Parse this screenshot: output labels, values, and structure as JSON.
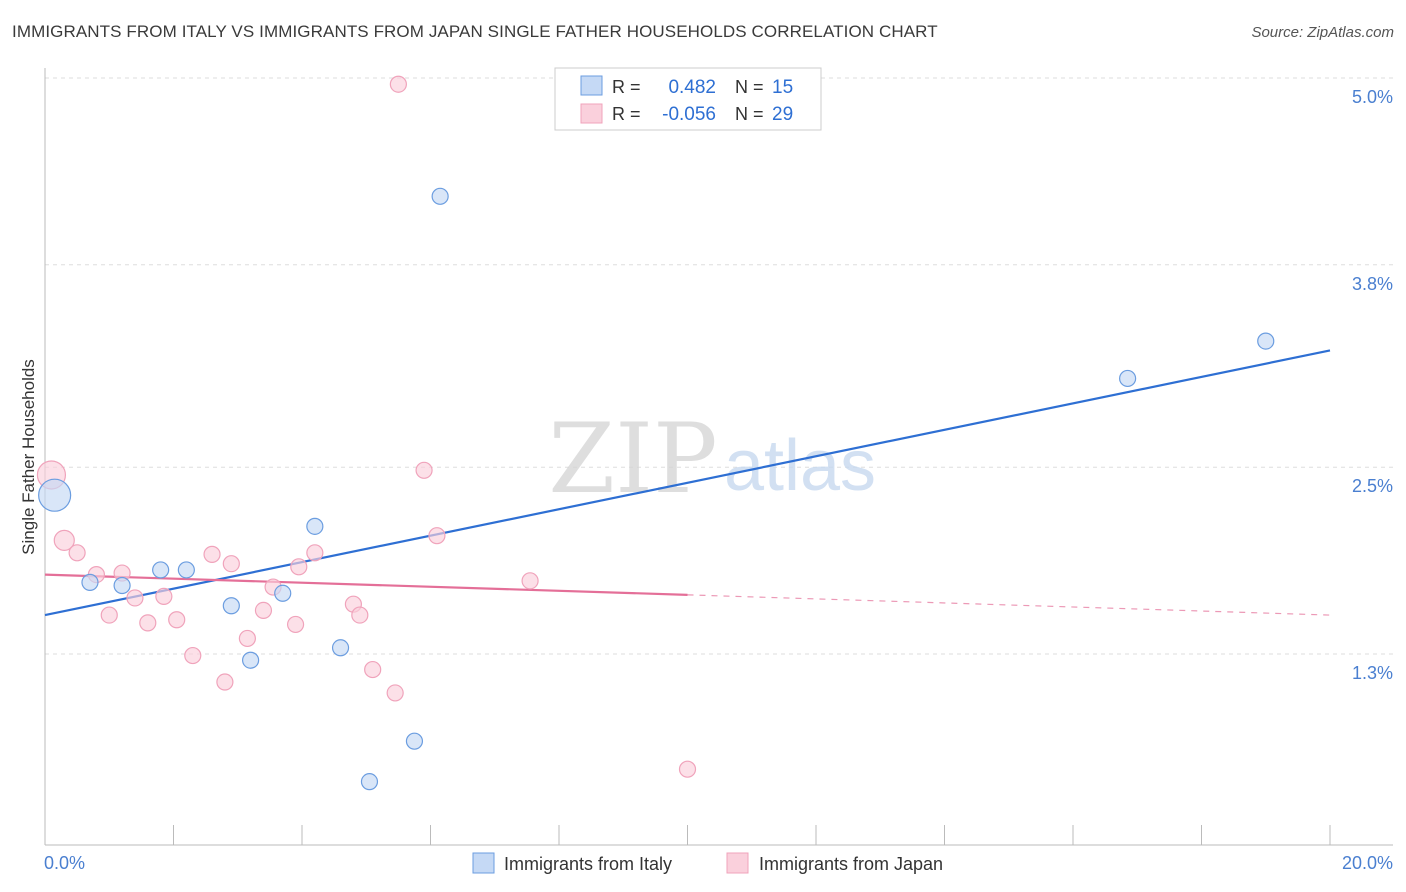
{
  "header": {
    "title": "IMMIGRANTS FROM ITALY VS IMMIGRANTS FROM JAPAN SINGLE FATHER HOUSEHOLDS CORRELATION CHART",
    "source": "Source: ZipAtlas.com"
  },
  "watermark": {
    "zip": "ZIP",
    "atlas": "atlas"
  },
  "stats": [
    {
      "r_label": "R =",
      "r_value": "0.482",
      "n_label": "N =",
      "n_value": "15"
    },
    {
      "r_label": "R =",
      "r_value": "-0.056",
      "n_label": "N =",
      "n_value": "29"
    }
  ],
  "chart_data": {
    "type": "scatter",
    "title": "IMMIGRANTS FROM ITALY VS IMMIGRANTS FROM JAPAN SINGLE FATHER HOUSEHOLDS CORRELATION CHART",
    "xlabel": "",
    "ylabel": "Single Father Households",
    "xlim": [
      0,
      20
    ],
    "ylim": [
      0,
      5.2
    ],
    "x_tick_labels": [
      "0.0%",
      "20.0%"
    ],
    "y_ticks": [
      1.3,
      2.5,
      3.8,
      5.0
    ],
    "y_tick_labels": [
      "1.3%",
      "2.5%",
      "3.8%",
      "5.0%"
    ],
    "grid": true,
    "colors": {
      "italy": "#6b9de0",
      "japan": "#f0a3bb",
      "italy_line": "#2e6fd3",
      "japan_line": "#e46f98",
      "tick_label": "#4a7fd0"
    },
    "series": [
      {
        "name": "Immigrants from Italy",
        "points": [
          {
            "x": 0.15,
            "y": 2.32,
            "size": 16
          },
          {
            "x": 0.7,
            "y": 1.76,
            "size": 8
          },
          {
            "x": 1.2,
            "y": 1.74,
            "size": 8
          },
          {
            "x": 1.8,
            "y": 1.84,
            "size": 8
          },
          {
            "x": 2.2,
            "y": 1.84,
            "size": 8
          },
          {
            "x": 2.9,
            "y": 1.61,
            "size": 8
          },
          {
            "x": 3.2,
            "y": 1.26,
            "size": 8
          },
          {
            "x": 3.7,
            "y": 1.69,
            "size": 8
          },
          {
            "x": 4.2,
            "y": 2.12,
            "size": 8
          },
          {
            "x": 4.6,
            "y": 1.34,
            "size": 8
          },
          {
            "x": 5.05,
            "y": 0.48,
            "size": 8
          },
          {
            "x": 5.75,
            "y": 0.74,
            "size": 8
          },
          {
            "x": 6.15,
            "y": 4.24,
            "size": 8
          },
          {
            "x": 16.85,
            "y": 3.07,
            "size": 8
          },
          {
            "x": 19.0,
            "y": 3.31,
            "size": 8
          }
        ],
        "trend": {
          "x": [
            0,
            20
          ],
          "y": [
            1.55,
            3.25
          ]
        }
      },
      {
        "name": "Immigrants from Japan",
        "points": [
          {
            "x": 0.1,
            "y": 2.45,
            "size": 14
          },
          {
            "x": 0.3,
            "y": 2.03,
            "size": 10
          },
          {
            "x": 0.5,
            "y": 1.95,
            "size": 8
          },
          {
            "x": 0.8,
            "y": 1.81,
            "size": 8
          },
          {
            "x": 1.0,
            "y": 1.55,
            "size": 8
          },
          {
            "x": 1.2,
            "y": 1.82,
            "size": 8
          },
          {
            "x": 1.4,
            "y": 1.66,
            "size": 8
          },
          {
            "x": 1.6,
            "y": 1.5,
            "size": 8
          },
          {
            "x": 1.85,
            "y": 1.67,
            "size": 8
          },
          {
            "x": 2.05,
            "y": 1.52,
            "size": 8
          },
          {
            "x": 2.3,
            "y": 1.29,
            "size": 8
          },
          {
            "x": 2.6,
            "y": 1.94,
            "size": 8
          },
          {
            "x": 2.8,
            "y": 1.12,
            "size": 8
          },
          {
            "x": 2.9,
            "y": 1.88,
            "size": 8
          },
          {
            "x": 3.15,
            "y": 1.4,
            "size": 8
          },
          {
            "x": 3.4,
            "y": 1.58,
            "size": 8
          },
          {
            "x": 3.55,
            "y": 1.73,
            "size": 8
          },
          {
            "x": 3.9,
            "y": 1.49,
            "size": 8
          },
          {
            "x": 3.95,
            "y": 1.86,
            "size": 8
          },
          {
            "x": 4.2,
            "y": 1.95,
            "size": 8
          },
          {
            "x": 4.8,
            "y": 1.62,
            "size": 8
          },
          {
            "x": 4.9,
            "y": 1.55,
            "size": 8
          },
          {
            "x": 5.1,
            "y": 1.2,
            "size": 8
          },
          {
            "x": 5.45,
            "y": 1.05,
            "size": 8
          },
          {
            "x": 5.5,
            "y": 4.96,
            "size": 8
          },
          {
            "x": 5.9,
            "y": 2.48,
            "size": 8
          },
          {
            "x": 6.1,
            "y": 2.06,
            "size": 8
          },
          {
            "x": 7.55,
            "y": 1.77,
            "size": 8
          },
          {
            "x": 10.0,
            "y": 0.56,
            "size": 8
          }
        ],
        "trend": {
          "x": [
            0,
            10
          ],
          "y": [
            1.81,
            1.68
          ]
        },
        "trend_extension": {
          "x": [
            10,
            20
          ],
          "y": [
            1.68,
            1.55
          ]
        }
      }
    ]
  }
}
